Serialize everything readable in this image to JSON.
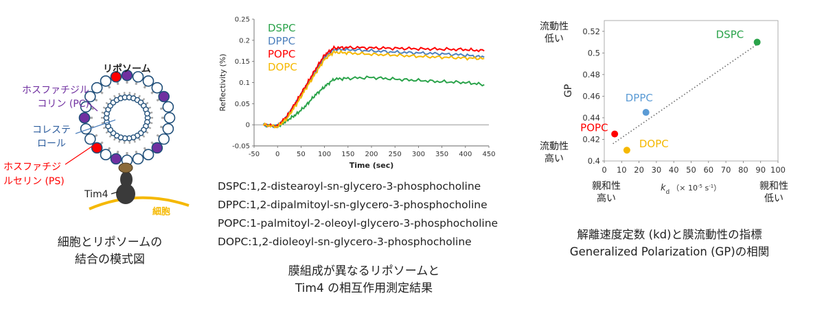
{
  "liposome": {
    "title": "リポソーム",
    "pc_label_line1": "ホスファチジル",
    "pc_label_line2": "コリン (PC)",
    "chol_label_line1": "コレステ",
    "chol_label_line2": "ロール",
    "ps_label_line1": "ホスファチジ",
    "ps_label_line2": "ルセリン (PS)",
    "tim4_label": "Tim4",
    "cell_label": "細胞",
    "caption_line1": "細胞とリポソームの",
    "caption_line2": "結合の模式図",
    "colors": {
      "pc": "#7030a0",
      "ps": "#ff0000",
      "cell": "#f5b800",
      "head": "#1f4e79",
      "tail": "#a6a6a6"
    }
  },
  "middle": {
    "lipids": [
      "DSPC:1,2-distearoyl-sn-glycero-3-phosphocholine",
      "DPPC:1,2-dipalmitoyl-sn-glycero-3-phosphocholine",
      "POPC:1-palmitoyl-2-oleoyl-glycero-3-phosphocholine",
      "DOPC:1,2-dioleoyl-sn-glycero-3-phosphocholine"
    ],
    "caption_line1": "膜組成が異なるリポソームと",
    "caption_line2": "Tim4 の相互作用測定結果"
  },
  "right": {
    "top_left_line1": "流動性",
    "top_left_line2": "低い",
    "bottom_left_line1": "流動性",
    "bottom_left_line2": "高い",
    "x_low_line1": "親和性",
    "x_low_line2": "高い",
    "x_high_line1": "親和性",
    "x_high_line2": "低い",
    "caption_line1": "解離速度定数 (kd)と膜流動性の指標",
    "caption_line2": "Generalized Polarization (GP)の相関"
  },
  "chart_data": [
    {
      "type": "line",
      "xlabel": "Time (sec)",
      "ylabel": "Reflectivity (%)",
      "xlim": [
        -50,
        450
      ],
      "ylim": [
        -0.05,
        0.25
      ],
      "xticks": [
        -50,
        0,
        50,
        100,
        150,
        200,
        250,
        300,
        350,
        400,
        450
      ],
      "yticks": [
        -0.05,
        0,
        0.05,
        0.1,
        0.15,
        0.2,
        0.25
      ],
      "ytick_labels": [
        "-0.05",
        "0",
        "0.05",
        "0.1",
        "0.15",
        "0.2",
        "0.25"
      ],
      "legend_position": "top-left",
      "series": [
        {
          "name": "DSPC",
          "color": "#2aa34a",
          "x": [
            -30,
            0,
            20,
            40,
            60,
            80,
            100,
            120,
            150,
            200,
            250,
            300,
            350,
            400,
            440
          ],
          "y": [
            0,
            -0.005,
            0.01,
            0.025,
            0.045,
            0.07,
            0.09,
            0.108,
            0.11,
            0.112,
            0.108,
            0.105,
            0.102,
            0.1,
            0.095
          ]
        },
        {
          "name": "DPPC",
          "color": "#4f81bd",
          "x": [
            -30,
            0,
            20,
            40,
            60,
            80,
            100,
            120,
            150,
            200,
            250,
            300,
            350,
            400,
            440
          ],
          "y": [
            0,
            -0.003,
            0.02,
            0.055,
            0.09,
            0.125,
            0.16,
            0.178,
            0.178,
            0.175,
            0.172,
            0.17,
            0.168,
            0.165,
            0.16
          ]
        },
        {
          "name": "POPC",
          "color": "#ff0000",
          "x": [
            -30,
            0,
            20,
            40,
            60,
            80,
            100,
            120,
            150,
            200,
            250,
            300,
            350,
            400,
            440
          ],
          "y": [
            0,
            -0.003,
            0.02,
            0.055,
            0.092,
            0.13,
            0.165,
            0.182,
            0.183,
            0.182,
            0.181,
            0.18,
            0.179,
            0.178,
            0.175
          ]
        },
        {
          "name": "DOPC",
          "color": "#f5b800",
          "x": [
            -30,
            0,
            20,
            40,
            60,
            80,
            100,
            120,
            150,
            200,
            250,
            300,
            350,
            400,
            440
          ],
          "y": [
            0,
            -0.005,
            0.015,
            0.048,
            0.085,
            0.12,
            0.155,
            0.172,
            0.17,
            0.167,
            0.165,
            0.162,
            0.16,
            0.158,
            0.157
          ]
        }
      ]
    },
    {
      "type": "scatter",
      "xlabel": "kd（× 10-5 s-1）",
      "ylabel": "GP",
      "xlim": [
        0,
        100
      ],
      "ylim": [
        0.4,
        0.53
      ],
      "xticks": [
        0,
        10,
        20,
        30,
        40,
        50,
        60,
        70,
        80,
        90,
        100
      ],
      "yticks": [
        0.4,
        0.42,
        0.44,
        0.46,
        0.48,
        0.5,
        0.52
      ],
      "ytick_labels": [
        "0.4",
        "0.42",
        "0.44",
        "0.46",
        "0.48",
        "0.5",
        "0.52"
      ],
      "trendline": {
        "style": "dotted",
        "x": [
          5,
          88
        ],
        "y": [
          0.416,
          0.508
        ]
      },
      "points": [
        {
          "name": "DSPC",
          "x": 88,
          "y": 0.51,
          "color": "#2aa34a"
        },
        {
          "name": "DPPC",
          "x": 24,
          "y": 0.445,
          "color": "#5b9bd5"
        },
        {
          "name": "POPC",
          "x": 6,
          "y": 0.425,
          "color": "#ff0000"
        },
        {
          "name": "DOPC",
          "x": 13,
          "y": 0.41,
          "color": "#f5b800"
        }
      ]
    }
  ]
}
